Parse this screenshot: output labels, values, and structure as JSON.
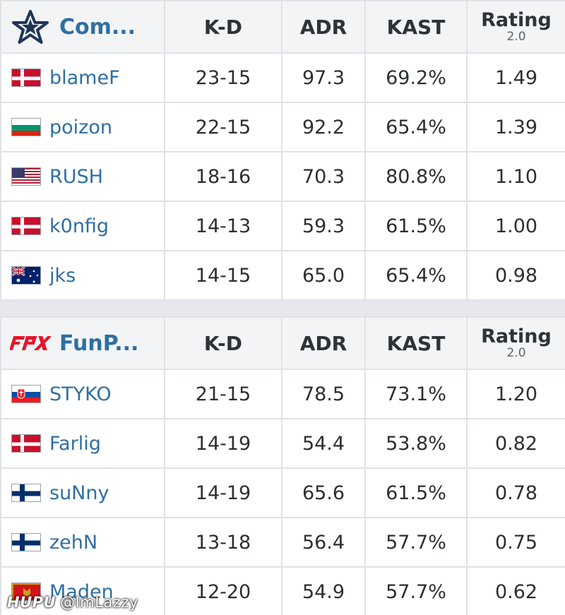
{
  "headers": {
    "kd": "K-D",
    "adr": "ADR",
    "kast": "KAST",
    "rating": "Rating",
    "rating_version": "2.0"
  },
  "teams": [
    {
      "name": "Com...",
      "logo": "complexity-star-icon",
      "players": [
        {
          "name": "blameF",
          "flag": "flag-denmark-icon",
          "kd": "23-15",
          "adr": "97.3",
          "kast": "69.2%",
          "rating": "1.49"
        },
        {
          "name": "poizon",
          "flag": "flag-bulgaria-icon",
          "kd": "22-15",
          "adr": "92.2",
          "kast": "65.4%",
          "rating": "1.39"
        },
        {
          "name": "RUSH",
          "flag": "flag-usa-icon",
          "kd": "18-16",
          "adr": "70.3",
          "kast": "80.8%",
          "rating": "1.10"
        },
        {
          "name": "k0nfig",
          "flag": "flag-denmark-icon",
          "kd": "14-13",
          "adr": "59.3",
          "kast": "61.5%",
          "rating": "1.00"
        },
        {
          "name": "jks",
          "flag": "flag-australia-icon",
          "kd": "14-15",
          "adr": "65.0",
          "kast": "65.4%",
          "rating": "0.98"
        }
      ]
    },
    {
      "name": "FunP...",
      "logo": "fpx-logo-icon",
      "players": [
        {
          "name": "STYKO",
          "flag": "flag-slovakia-icon",
          "kd": "21-15",
          "adr": "78.5",
          "kast": "73.1%",
          "rating": "1.20"
        },
        {
          "name": "Farlig",
          "flag": "flag-denmark-icon",
          "kd": "14-19",
          "adr": "54.4",
          "kast": "53.8%",
          "rating": "0.82"
        },
        {
          "name": "suNny",
          "flag": "flag-finland-icon",
          "kd": "14-19",
          "adr": "65.6",
          "kast": "61.5%",
          "rating": "0.78"
        },
        {
          "name": "zehN",
          "flag": "flag-finland-icon",
          "kd": "13-18",
          "adr": "56.4",
          "kast": "57.7%",
          "rating": "0.75"
        },
        {
          "name": "Maden",
          "flag": "flag-montenegro-icon",
          "kd": "12-20",
          "adr": "54.9",
          "kast": "57.7%",
          "rating": "0.62"
        }
      ]
    }
  ],
  "watermark": {
    "brand": "HUPU",
    "handle": "@ImLazzy"
  },
  "colors": {
    "link": "#2f6ea3",
    "header_bg": "#f2f4f6",
    "border": "#dfe2e6",
    "fpx_red": "#e4172b",
    "star_navy": "#1f3556"
  }
}
